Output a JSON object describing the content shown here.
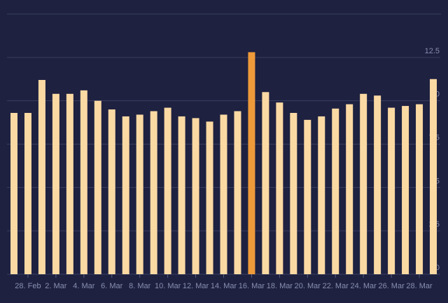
{
  "chart_data": {
    "type": "bar",
    "categories": [
      null,
      "28. Feb",
      null,
      "2. Mar",
      null,
      "4. Mar",
      null,
      "6. Mar",
      null,
      "8. Mar",
      null,
      "10. Mar",
      null,
      "12. Mar",
      null,
      "14. Mar",
      null,
      "16. Mar",
      null,
      "18. Mar",
      null,
      "20. Mar",
      null,
      "22. Mar",
      null,
      "24. Mar",
      null,
      "26. Mar",
      null,
      "28. Mar",
      null
    ],
    "values": [
      9.3,
      9.3,
      11.2,
      10.4,
      10.4,
      10.6,
      10.0,
      9.5,
      9.1,
      9.2,
      9.4,
      9.6,
      9.1,
      9.0,
      8.8,
      9.2,
      9.4,
      12.8,
      10.5,
      9.9,
      9.3,
      8.9,
      9.1,
      9.55,
      9.8,
      10.4,
      10.3,
      9.6,
      9.7,
      9.8,
      11.25
    ],
    "colors": [
      "#fbd9a3",
      "#fbd9a3",
      "#fbd9a3",
      "#fbd9a3",
      "#fbd9a3",
      "#fbd9a3",
      "#fbd9a3",
      "#fbd9a3",
      "#fbd9a3",
      "#fbd9a3",
      "#fbd9a3",
      "#fbd9a3",
      "#fbd9a3",
      "#fbd9a3",
      "#fbd9a3",
      "#fbd9a3",
      "#fbd9a3",
      "#ee9a3a",
      "#fbd9a3",
      "#fbd9a3",
      "#fbd9a3",
      "#fbd9a3",
      "#fbd9a3",
      "#fbd9a3",
      "#fbd9a3",
      "#fbd9a3",
      "#fbd9a3",
      "#fbd9a3",
      "#fbd9a3",
      "#fbd9a3",
      "#fbd9a3"
    ],
    "ylim": [
      0,
      15
    ],
    "yticks": [
      0,
      2.5,
      5,
      7.5,
      10,
      12.5
    ],
    "grid": true
  }
}
